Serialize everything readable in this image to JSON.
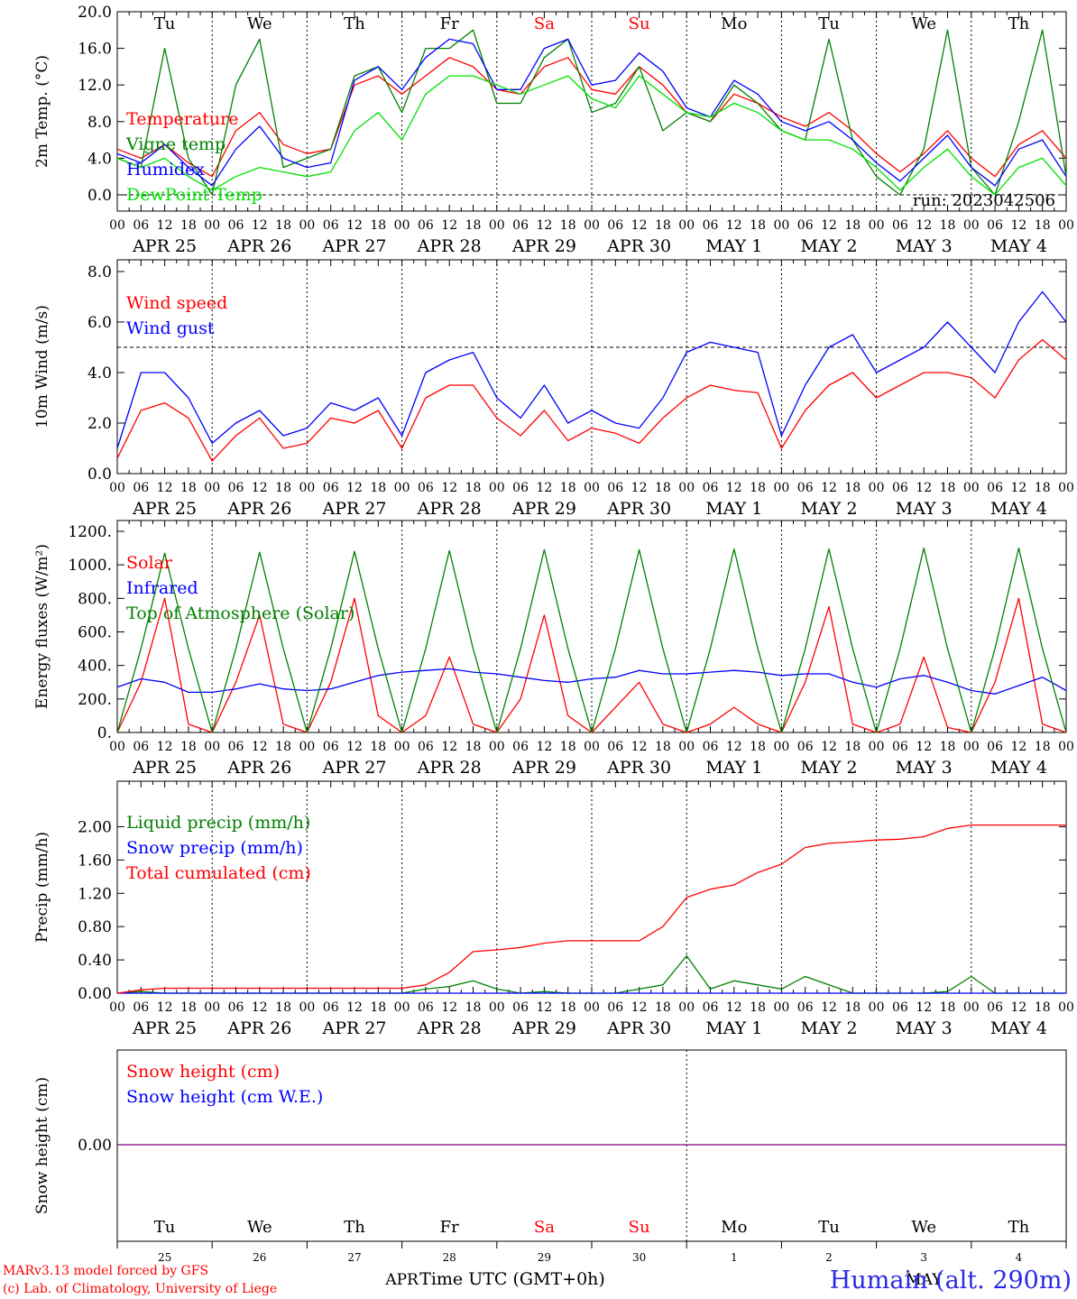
{
  "x_hour_ticks": [
    "00",
    "06",
    "12",
    "18"
  ],
  "date_labels": [
    "APR 25",
    "APR 26",
    "APR 27",
    "APR 28",
    "APR 29",
    "APR 30",
    "MAY  1",
    "MAY  2",
    "MAY  3",
    "MAY  4"
  ],
  "weekdays": [
    "Tu",
    "We",
    "Th",
    "Fr",
    "Sa",
    "Su",
    "Mo",
    "Tu",
    "We",
    "Th"
  ],
  "weekday_colors": [
    "#000000",
    "#000000",
    "#000000",
    "#000000",
    "#ff0000",
    "#ff0000",
    "#000000",
    "#000000",
    "#000000",
    "#000000"
  ],
  "day_numbers": [
    "25",
    "26",
    "27",
    "28",
    "29",
    "30",
    "1",
    "2",
    "3",
    "4"
  ],
  "month_labels": [
    "APR",
    "MAY"
  ],
  "run_label": "run: 2023042506",
  "footer": {
    "model_line": "MARv3.13 model forced by GFS",
    "lab_line": "(c) Lab. of Climatology, University of Liege",
    "xlabel": "Time UTC (GMT+0h)",
    "station": "Humain (alt. 290m)"
  },
  "chart_data": [
    {
      "type": "line",
      "ylabel": "2m Temp. (°C)",
      "ylim": [
        0,
        20
      ],
      "yticks": [
        "0.0",
        "4.0",
        "8.0",
        "12.0",
        "16.0",
        "20.0"
      ],
      "reference_line": 0,
      "legend": [
        {
          "name": "Temperature",
          "color": "#ff0000"
        },
        {
          "name": "Vigne temp",
          "color": "#008000"
        },
        {
          "name": "Humidex",
          "color": "#0000ff"
        },
        {
          "name": "DewPoint Temp",
          "color": "#00e000"
        }
      ],
      "x_hours": [
        0,
        6,
        12,
        18,
        24,
        30,
        36,
        42,
        48,
        54,
        60,
        66,
        72,
        78,
        84,
        90,
        96,
        102,
        108,
        114,
        120,
        126,
        132,
        138,
        144,
        150,
        156,
        162,
        168,
        174,
        180,
        186,
        192,
        198,
        204,
        210,
        216,
        222,
        228,
        234,
        240
      ],
      "series": [
        {
          "name": "Temperature",
          "color": "#ff0000",
          "values": [
            5,
            4,
            5.5,
            3.5,
            2,
            7,
            9,
            5.5,
            4.5,
            5,
            12,
            13,
            11,
            13,
            15,
            14,
            11.5,
            11,
            14,
            15,
            11.5,
            11,
            14,
            12,
            9,
            8,
            11,
            10,
            8.5,
            7.5,
            9,
            7,
            4.5,
            2.5,
            4.5,
            7,
            4,
            2,
            5.5,
            7,
            4
          ]
        },
        {
          "name": "Vigne temp",
          "color": "#008000",
          "values": [
            4,
            3,
            16,
            4,
            0,
            12,
            17,
            3,
            4,
            5,
            13,
            14,
            9,
            16,
            16,
            18,
            10,
            10,
            15,
            17,
            9,
            10,
            14,
            7,
            9,
            8,
            12,
            10,
            7,
            6,
            17,
            6,
            2,
            0,
            5,
            18,
            3,
            0,
            8,
            18,
            2
          ]
        },
        {
          "name": "Humidex",
          "color": "#0000ff",
          "values": [
            4.5,
            3.5,
            5.5,
            3,
            1,
            5,
            7.5,
            4,
            3,
            3.5,
            12.5,
            14,
            11.5,
            15,
            17,
            16.5,
            11.5,
            11.5,
            16,
            17,
            12,
            12.5,
            15.5,
            13.5,
            9.5,
            8.5,
            12.5,
            11,
            8,
            7,
            8,
            6,
            3.5,
            1.5,
            4,
            6.5,
            3,
            1,
            5,
            6,
            2
          ]
        },
        {
          "name": "DewPoint Temp",
          "color": "#00e000",
          "values": [
            4,
            3,
            4,
            2,
            0.5,
            2,
            3,
            2.5,
            2,
            2.5,
            7,
            9,
            6,
            11,
            13,
            13,
            12,
            11,
            12,
            13,
            10.5,
            9.5,
            13,
            11,
            9,
            8.5,
            10,
            9,
            7,
            6,
            6,
            5,
            3,
            0.5,
            3,
            5,
            2,
            0,
            3,
            4,
            1
          ]
        }
      ]
    },
    {
      "type": "line",
      "ylabel": "10m Wind (m/s)",
      "ylim": [
        0,
        8
      ],
      "yticks": [
        "0.0",
        "2.0",
        "4.0",
        "6.0",
        "8.0"
      ],
      "reference_line": 5,
      "legend": [
        {
          "name": "Wind speed",
          "color": "#ff0000"
        },
        {
          "name": "Wind gust",
          "color": "#0000ff"
        }
      ],
      "x_hours": [
        0,
        6,
        12,
        18,
        24,
        30,
        36,
        42,
        48,
        54,
        60,
        66,
        72,
        78,
        84,
        90,
        96,
        102,
        108,
        114,
        120,
        126,
        132,
        138,
        144,
        150,
        156,
        162,
        168,
        174,
        180,
        186,
        192,
        198,
        204,
        210,
        216,
        222,
        228,
        234,
        240
      ],
      "series": [
        {
          "name": "Wind speed",
          "color": "#ff0000",
          "values": [
            0.6,
            2.5,
            2.8,
            2.2,
            0.5,
            1.5,
            2.2,
            1,
            1.2,
            2.2,
            2,
            2.5,
            1,
            3,
            3.5,
            3.5,
            2.2,
            1.5,
            2.5,
            1.3,
            1.8,
            1.6,
            1.2,
            2.2,
            3,
            3.5,
            3.3,
            3.2,
            1,
            2.5,
            3.5,
            4,
            3,
            3.5,
            4,
            4,
            3.8,
            3,
            4.5,
            5.3,
            4.5
          ]
        },
        {
          "name": "Wind gust",
          "color": "#0000ff",
          "values": [
            1,
            4,
            4,
            3,
            1.2,
            2,
            2.5,
            1.5,
            1.8,
            2.8,
            2.5,
            3,
            1.5,
            4,
            4.5,
            4.8,
            3,
            2.2,
            3.5,
            2,
            2.5,
            2,
            1.8,
            3,
            4.8,
            5.2,
            5,
            4.8,
            1.5,
            3.5,
            5,
            5.5,
            4,
            4.5,
            5,
            6,
            5,
            4,
            6,
            7.2,
            6
          ]
        }
      ]
    },
    {
      "type": "line",
      "ylabel": "Energy fluxes (W/m²)",
      "ylim": [
        0,
        1200
      ],
      "yticks": [
        "0.",
        "200.",
        "400.",
        "600.",
        "800.",
        "1000.",
        "1200."
      ],
      "legend": [
        {
          "name": "Solar",
          "color": "#ff0000"
        },
        {
          "name": "Infrared",
          "color": "#0000ff"
        },
        {
          "name": "Top of Atmosphere (Solar)",
          "color": "#008000"
        }
      ],
      "x_hours": [
        0,
        6,
        12,
        18,
        24,
        30,
        36,
        42,
        48,
        54,
        60,
        66,
        72,
        78,
        84,
        90,
        96,
        102,
        108,
        114,
        120,
        126,
        132,
        138,
        144,
        150,
        156,
        162,
        168,
        174,
        180,
        186,
        192,
        198,
        204,
        210,
        216,
        222,
        228,
        234,
        240
      ],
      "series": [
        {
          "name": "Solar",
          "color": "#ff0000",
          "values": [
            0,
            300,
            800,
            50,
            0,
            300,
            700,
            50,
            0,
            300,
            800,
            100,
            0,
            100,
            450,
            50,
            0,
            200,
            700,
            100,
            0,
            150,
            300,
            50,
            0,
            50,
            150,
            50,
            0,
            300,
            750,
            50,
            0,
            50,
            450,
            30,
            0,
            300,
            800,
            50,
            0
          ]
        },
        {
          "name": "Infrared",
          "color": "#0000ff",
          "values": [
            270,
            320,
            300,
            240,
            240,
            260,
            290,
            260,
            250,
            260,
            300,
            340,
            360,
            370,
            380,
            360,
            350,
            330,
            310,
            300,
            320,
            330,
            370,
            350,
            350,
            360,
            370,
            360,
            340,
            350,
            350,
            300,
            270,
            320,
            340,
            300,
            250,
            230,
            280,
            330,
            250
          ]
        },
        {
          "name": "Top of Atmosphere (Solar)",
          "color": "#008000",
          "values": [
            0,
            500,
            1070,
            500,
            0,
            500,
            1075,
            500,
            0,
            500,
            1080,
            500,
            0,
            500,
            1085,
            500,
            0,
            500,
            1090,
            500,
            0,
            500,
            1090,
            500,
            0,
            500,
            1095,
            500,
            0,
            500,
            1095,
            500,
            0,
            500,
            1100,
            500,
            0,
            500,
            1100,
            500,
            0
          ]
        }
      ]
    },
    {
      "type": "line",
      "ylabel": "Precip (mm/h)",
      "ylim": [
        0,
        2.2
      ],
      "yticks": [
        "0.00",
        "0.40",
        "0.80",
        "1.20",
        "1.60",
        "2.00"
      ],
      "legend": [
        {
          "name": "Liquid precip (mm/h)",
          "color": "#008000"
        },
        {
          "name": "Snow precip (mm/h)",
          "color": "#0000ff"
        },
        {
          "name": "Total cumulated (cm)",
          "color": "#ff0000"
        }
      ],
      "x_hours": [
        0,
        6,
        12,
        18,
        24,
        30,
        36,
        42,
        48,
        54,
        60,
        66,
        72,
        78,
        84,
        90,
        96,
        102,
        108,
        114,
        120,
        126,
        132,
        138,
        144,
        150,
        156,
        162,
        168,
        174,
        180,
        186,
        192,
        198,
        204,
        210,
        216,
        222,
        228,
        234,
        240
      ],
      "series": [
        {
          "name": "Liquid precip (mm/h)",
          "color": "#008000",
          "values": [
            0,
            0.02,
            0,
            0,
            0,
            0,
            0,
            0,
            0,
            0,
            0,
            0,
            0,
            0.05,
            0.08,
            0.15,
            0.05,
            0,
            0.02,
            0,
            0,
            0,
            0.05,
            0.1,
            0.45,
            0.05,
            0.15,
            0.1,
            0.05,
            0.2,
            0.1,
            0,
            0,
            0,
            0,
            0.02,
            0.2,
            0,
            0,
            0,
            0
          ]
        },
        {
          "name": "Snow precip (mm/h)",
          "color": "#0000ff",
          "values": [
            0,
            0,
            0,
            0,
            0,
            0,
            0,
            0,
            0,
            0,
            0,
            0,
            0,
            0,
            0,
            0,
            0,
            0,
            0,
            0,
            0,
            0,
            0,
            0,
            0,
            0,
            0,
            0,
            0,
            0,
            0,
            0,
            0,
            0,
            0,
            0,
            0,
            0,
            0,
            0,
            0
          ]
        },
        {
          "name": "Total cumulated (cm)",
          "color": "#ff0000",
          "values": [
            0,
            0.04,
            0.06,
            0.06,
            0.06,
            0.06,
            0.06,
            0.06,
            0.06,
            0.06,
            0.06,
            0.06,
            0.06,
            0.1,
            0.25,
            0.5,
            0.52,
            0.55,
            0.6,
            0.63,
            0.63,
            0.63,
            0.63,
            0.8,
            1.15,
            1.25,
            1.3,
            1.45,
            1.55,
            1.75,
            1.8,
            1.82,
            1.84,
            1.85,
            1.88,
            1.98,
            2.02,
            2.02,
            2.02,
            2.02,
            2.02
          ]
        }
      ]
    },
    {
      "type": "line",
      "ylabel": "Snow height (cm)",
      "yticks": [
        "0.00"
      ],
      "legend": [
        {
          "name": "Snow height (cm)",
          "color": "#ff0000"
        },
        {
          "name": "Snow height (cm W.E.)",
          "color": "#0000ff"
        }
      ],
      "x_hours": [
        0,
        240
      ],
      "series": [
        {
          "name": "Snow height",
          "color": "#800080",
          "values": [
            0,
            0
          ]
        }
      ]
    }
  ]
}
